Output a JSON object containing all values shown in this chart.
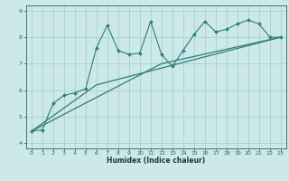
{
  "title": "",
  "xlabel": "Humidex (Indice chaleur)",
  "ylabel": "",
  "background_color": "#cce8e8",
  "grid_color": "#aacfcf",
  "line_color": "#2d7d7d",
  "xlim": [
    -0.5,
    23.5
  ],
  "ylim": [
    3.8,
    9.2
  ],
  "yticks": [
    4,
    5,
    6,
    7,
    8,
    9
  ],
  "xticks": [
    0,
    1,
    2,
    3,
    4,
    5,
    6,
    7,
    8,
    9,
    10,
    11,
    12,
    13,
    14,
    15,
    16,
    17,
    18,
    19,
    20,
    21,
    22,
    23
  ],
  "curve1_x": [
    0,
    1,
    2,
    3,
    4,
    5,
    6,
    7,
    8,
    9,
    10,
    11,
    12,
    13,
    14,
    15,
    16,
    17,
    18,
    19,
    20,
    21,
    22,
    23
  ],
  "curve1_y": [
    4.45,
    4.5,
    5.5,
    5.8,
    5.9,
    6.05,
    7.6,
    8.45,
    7.5,
    7.35,
    7.4,
    8.6,
    7.35,
    6.9,
    7.5,
    8.1,
    8.6,
    8.2,
    8.3,
    8.5,
    8.65,
    8.5,
    8.0,
    8.0
  ],
  "curve2_x": [
    0,
    6,
    23
  ],
  "curve2_y": [
    4.45,
    6.2,
    8.0
  ],
  "curve3_x": [
    0,
    12,
    23
  ],
  "curve3_y": [
    4.45,
    7.0,
    8.0
  ]
}
